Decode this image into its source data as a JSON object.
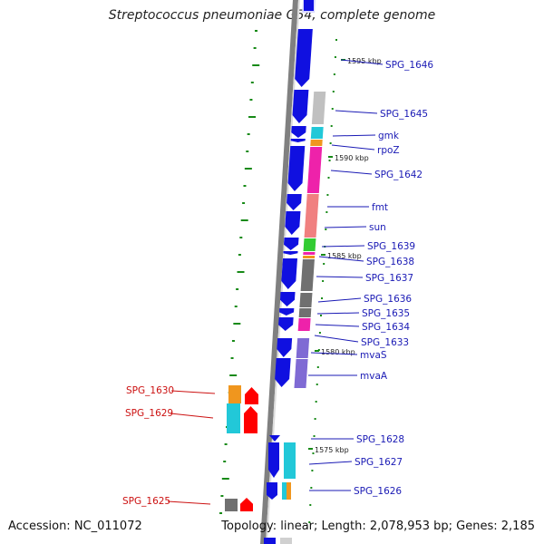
{
  "title": "Streptococcus pneumoniae G54, complete genome",
  "footer": {
    "accession": "Accession: NC_011072",
    "topology": "Topology: linear; Length: 2,078,953 bp; Genes: 2,185"
  },
  "scale_labels": [
    "1595 kbp",
    "1590 kbp",
    "1585 kbp",
    "1580 kbp",
    "1575 kbp"
  ],
  "genes_right": [
    {
      "name": "SPG_1646"
    },
    {
      "name": "SPG_1645"
    },
    {
      "name": "gmk"
    },
    {
      "name": "rpoZ"
    },
    {
      "name": "SPG_1642"
    },
    {
      "name": "fmt"
    },
    {
      "name": "sun"
    },
    {
      "name": "SPG_1639"
    },
    {
      "name": "SPG_1638"
    },
    {
      "name": "SPG_1637"
    },
    {
      "name": "SPG_1636"
    },
    {
      "name": "SPG_1635"
    },
    {
      "name": "SPG_1634"
    },
    {
      "name": "SPG_1633"
    },
    {
      "name": "mvaS"
    },
    {
      "name": "mvaA"
    },
    {
      "name": "SPG_1628"
    },
    {
      "name": "SPG_1627"
    },
    {
      "name": "SPG_1626"
    }
  ],
  "genes_left": [
    {
      "name": "SPG_1630"
    },
    {
      "name": "SPG_1629"
    },
    {
      "name": "SPG_1625"
    }
  ],
  "colors": {
    "gene_blue": "#1010e0",
    "label_blue": "#1a1ab5",
    "label_red": "#cc1111",
    "tick_green": "#178a17",
    "backbone": "#808080",
    "cog_grey": "#c0c0c0",
    "cog_cyan": "#22c8d8",
    "cog_orange": "#f0961e",
    "cog_magenta": "#ee22aa",
    "cog_pink": "#f08080",
    "cog_green": "#33cc33",
    "cog_darkgrey": "#707070",
    "cog_purple": "#7f6ad4",
    "red_gene": "#ff0000"
  }
}
